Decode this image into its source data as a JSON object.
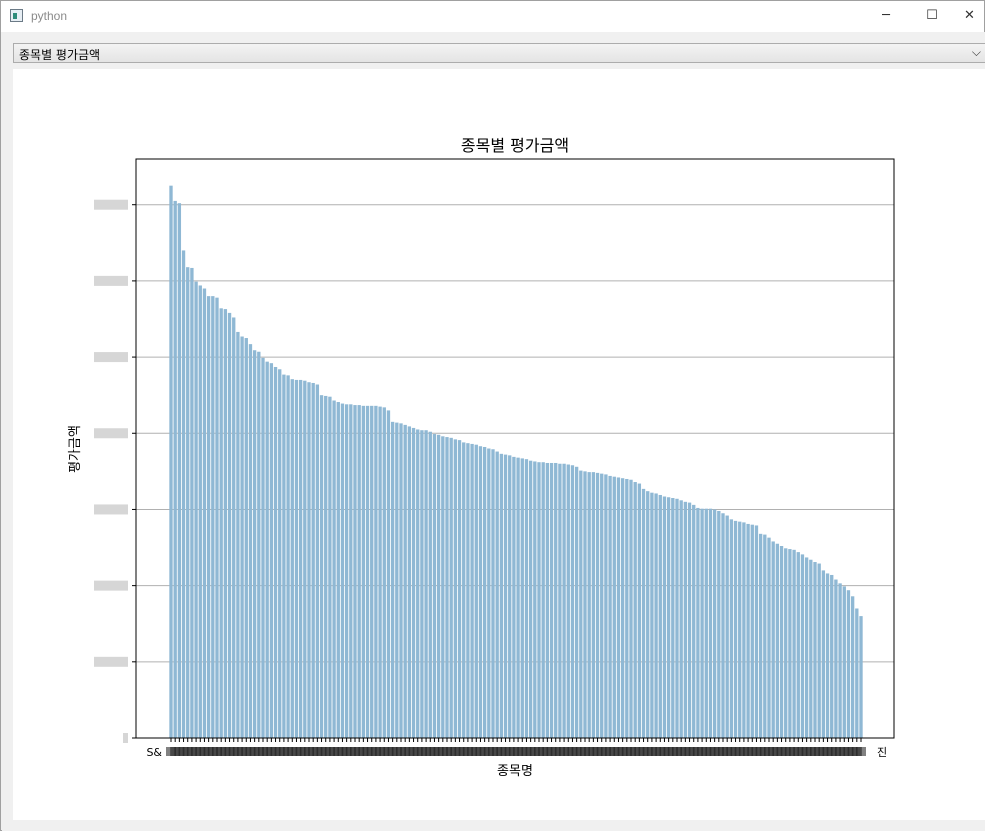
{
  "window": {
    "title": "python",
    "icon": "python-app-icon",
    "buttons": {
      "minimize": "─",
      "maximize": "☐",
      "close": "✕"
    }
  },
  "selector": {
    "selected": "종목별 평가금액",
    "arrow_icon": "chevron-down-icon"
  },
  "chart_data": {
    "type": "bar",
    "title": "종목별 평가금액",
    "xlabel": "종목명",
    "ylabel": "평가금액",
    "bar_color": "#8fb8d4",
    "grid": "horizontal",
    "ylim": [
      0,
      7.6
    ],
    "y_ticks": [
      0,
      1,
      2,
      3,
      4,
      5,
      6,
      7
    ],
    "x_first_label": "S&",
    "x_last_label": "진",
    "values": [
      7.25,
      7.05,
      7.02,
      6.4,
      6.18,
      6.17,
      5.99,
      5.94,
      5.9,
      5.8,
      5.8,
      5.78,
      5.64,
      5.63,
      5.58,
      5.52,
      5.33,
      5.27,
      5.25,
      5.17,
      5.09,
      5.07,
      4.99,
      4.94,
      4.92,
      4.87,
      4.84,
      4.77,
      4.76,
      4.71,
      4.7,
      4.7,
      4.69,
      4.67,
      4.66,
      4.64,
      4.5,
      4.49,
      4.48,
      4.43,
      4.41,
      4.39,
      4.38,
      4.38,
      4.37,
      4.37,
      4.36,
      4.36,
      4.36,
      4.36,
      4.35,
      4.34,
      4.3,
      4.15,
      4.14,
      4.13,
      4.11,
      4.09,
      4.07,
      4.05,
      4.04,
      4.04,
      4.02,
      3.99,
      3.98,
      3.96,
      3.95,
      3.94,
      3.92,
      3.91,
      3.88,
      3.87,
      3.86,
      3.85,
      3.83,
      3.82,
      3.8,
      3.79,
      3.76,
      3.73,
      3.72,
      3.71,
      3.69,
      3.68,
      3.67,
      3.66,
      3.64,
      3.63,
      3.62,
      3.62,
      3.61,
      3.61,
      3.61,
      3.6,
      3.6,
      3.59,
      3.58,
      3.56,
      3.51,
      3.5,
      3.49,
      3.49,
      3.48,
      3.47,
      3.46,
      3.44,
      3.43,
      3.42,
      3.41,
      3.4,
      3.39,
      3.36,
      3.34,
      3.27,
      3.24,
      3.22,
      3.21,
      3.19,
      3.17,
      3.16,
      3.15,
      3.14,
      3.12,
      3.1,
      3.09,
      3.06,
      3.02,
      3.01,
      3.01,
      3.01,
      3.0,
      2.98,
      2.95,
      2.92,
      2.87,
      2.85,
      2.84,
      2.83,
      2.81,
      2.8,
      2.79,
      2.68,
      2.67,
      2.63,
      2.58,
      2.55,
      2.52,
      2.49,
      2.48,
      2.47,
      2.44,
      2.41,
      2.37,
      2.34,
      2.31,
      2.29,
      2.2,
      2.16,
      2.14,
      2.08,
      2.03,
      1.99,
      1.94,
      1.86,
      1.7,
      1.6
    ]
  }
}
